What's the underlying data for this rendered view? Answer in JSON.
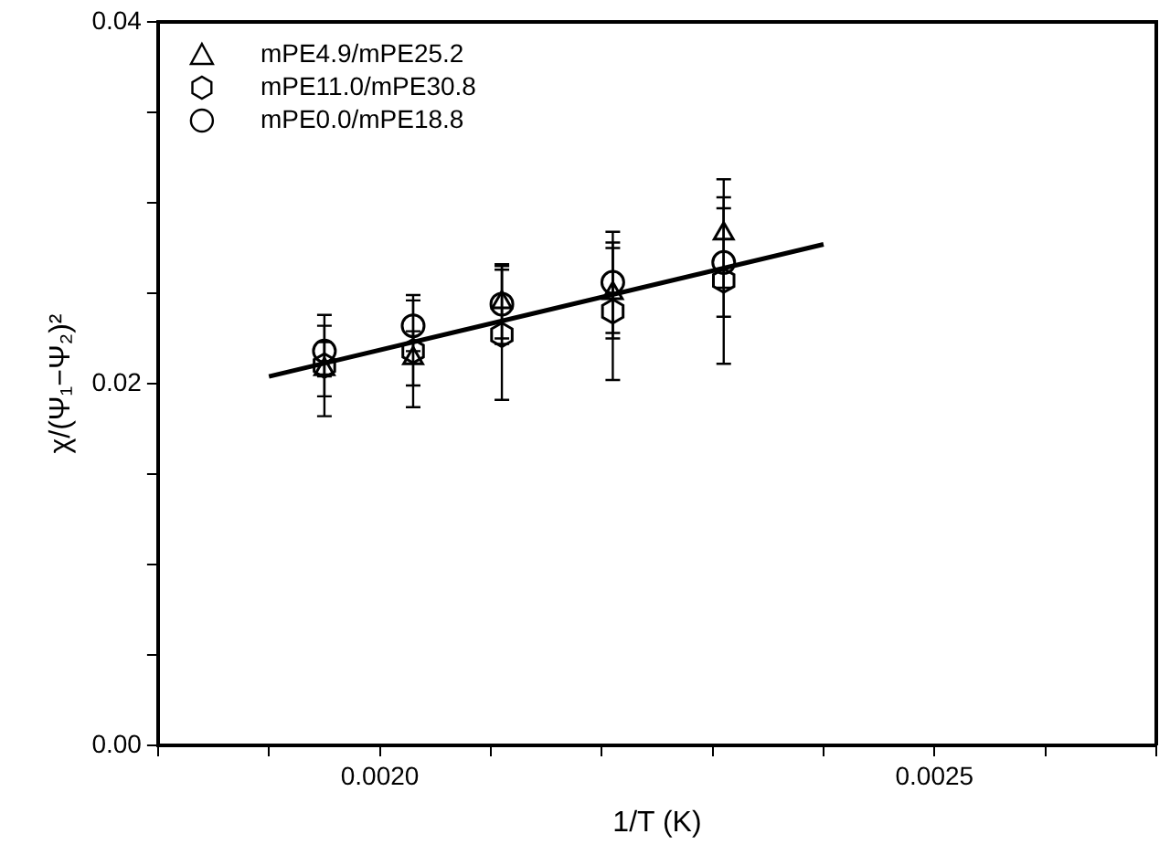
{
  "chart_data": {
    "type": "scatter",
    "xlabel": "1/T (K)",
    "ylabel": "χ/(Ψ₁−Ψ₂)²",
    "legend": "top left",
    "xlim": [
      0.0018,
      0.0027
    ],
    "xticks": [
      {
        "value": 0.0018,
        "label": null
      },
      {
        "value": 0.0019,
        "label": null
      },
      {
        "value": 0.002,
        "label": "0.0020"
      },
      {
        "value": 0.0021,
        "label": null
      },
      {
        "value": 0.0022,
        "label": null
      },
      {
        "value": 0.0023,
        "label": null
      },
      {
        "value": 0.0024,
        "label": null
      },
      {
        "value": 0.0025,
        "label": "0.0025"
      },
      {
        "value": 0.0026,
        "label": null
      },
      {
        "value": 0.0027,
        "label": null
      }
    ],
    "ylim": [
      0,
      0.04
    ],
    "yticks": [
      {
        "value": 0,
        "label": "0.00"
      },
      {
        "value": 0.005,
        "label": null
      },
      {
        "value": 0.01,
        "label": null
      },
      {
        "value": 0.015,
        "label": null
      },
      {
        "value": 0.02,
        "label": "0.02"
      },
      {
        "value": 0.025,
        "label": null
      },
      {
        "value": 0.03,
        "label": null
      },
      {
        "value": 0.035,
        "label": null
      },
      {
        "value": 0.04,
        "label": "0.04"
      }
    ],
    "grid": false,
    "series": [
      {
        "name": "mPE4.9/mPE25.2",
        "color": "#000000",
        "marker": "triangle",
        "x": [
          0.00195,
          0.00203,
          0.00211,
          0.00221,
          0.00231
        ],
        "values": [
          0.0208,
          0.0214,
          0.0245,
          0.025,
          0.0283
        ],
        "errors": [
          0.0015,
          0.0015,
          0.002,
          0.0025,
          0.003
        ]
      },
      {
        "name": "mPE11.0/mPE30.8",
        "color": "#000000",
        "x": [
          0.00195,
          0.00203,
          0.00211,
          0.00221,
          0.00231
        ],
        "values": [
          0.021,
          0.0218,
          0.0227,
          0.024,
          0.0257
        ],
        "errors": [
          0.0028,
          0.0031,
          0.0036,
          0.0038,
          0.0046
        ]
      },
      {
        "name": "mPE0.0/mPE18.8",
        "color": "#000000",
        "marker": "circle",
        "x": [
          0.00195,
          0.00203,
          0.00211,
          0.00221,
          0.00231
        ],
        "values": [
          0.0218,
          0.0232,
          0.0244,
          0.0256,
          0.0267
        ],
        "errors": [
          0.0014,
          0.0014,
          0.0022,
          0.0028,
          0.003
        ]
      },
      {
        "type": "line",
        "color": "#000000",
        "marker": "none",
        "x": [
          0.0019,
          0.0024
        ],
        "values": [
          0.0204,
          0.0277
        ]
      }
    ]
  }
}
